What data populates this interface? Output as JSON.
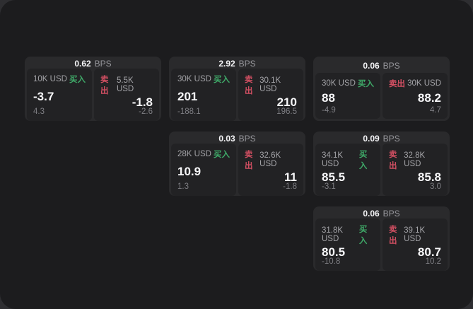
{
  "labels": {
    "bps": "BPS",
    "buy": "买入",
    "sell": "卖出"
  },
  "colors": {
    "buy": "#3fa968",
    "sell": "#d24f62",
    "window_bg": "#1c1c1e",
    "card_bg": "#2a2a2c",
    "panel_bg": "#222224"
  },
  "cards": [
    {
      "col": 1,
      "row": 1,
      "bps": "0.62",
      "buy": {
        "size": "10K USD",
        "main": "-3.7",
        "sub": "4.3"
      },
      "sell": {
        "size": "5.5K USD",
        "main": "-1.8",
        "sub": "-2.6"
      }
    },
    {
      "col": 2,
      "row": 1,
      "bps": "2.92",
      "buy": {
        "size": "30K USD",
        "main": "201",
        "sub": "-188.1"
      },
      "sell": {
        "size": "30.1K USD",
        "main": "210",
        "sub": "196.5"
      }
    },
    {
      "col": 3,
      "row": 1,
      "bps": "0.06",
      "buy": {
        "size": "30K USD",
        "main": "88",
        "sub": "-4.9"
      },
      "sell": {
        "size": "30K USD",
        "main": "88.2",
        "sub": "4.7"
      }
    },
    {
      "col": 2,
      "row": 2,
      "bps": "0.03",
      "buy": {
        "size": "28K USD",
        "main": "10.9",
        "sub": "1.3"
      },
      "sell": {
        "size": "32.6K USD",
        "main": "11",
        "sub": "-1.8"
      }
    },
    {
      "col": 3,
      "row": 2,
      "bps": "0.09",
      "buy": {
        "size": "34.1K USD",
        "main": "85.5",
        "sub": "-3.1"
      },
      "sell": {
        "size": "32.8K USD",
        "main": "85.8",
        "sub": "3.0"
      }
    },
    {
      "col": 3,
      "row": 3,
      "bps": "0.06",
      "buy": {
        "size": "31.8K USD",
        "main": "80.5",
        "sub": "-10.8"
      },
      "sell": {
        "size": "39.1K USD",
        "main": "80.7",
        "sub": "10.2"
      }
    }
  ]
}
